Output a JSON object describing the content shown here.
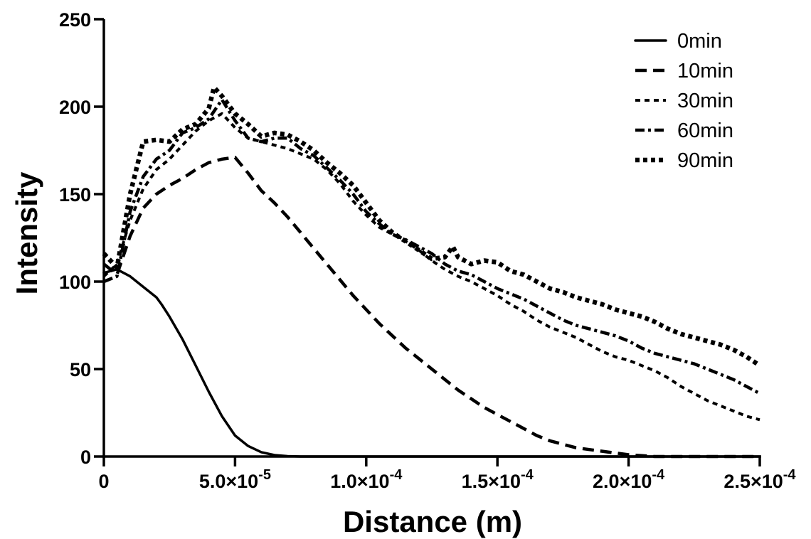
{
  "chart_data": {
    "type": "line",
    "title": "",
    "xlabel": "Distance (m)",
    "ylabel": "Intensity",
    "xlim": [
      0,
      0.00025
    ],
    "ylim": [
      0,
      250
    ],
    "grid": false,
    "legend_position": "top-right",
    "x_ticks": [
      {
        "value": 0,
        "mantissa": "0",
        "exponent": ""
      },
      {
        "value": 5e-05,
        "mantissa": "5.0×10",
        "exponent": "-5"
      },
      {
        "value": 0.0001,
        "mantissa": "1.0×10",
        "exponent": "-4"
      },
      {
        "value": 0.00015,
        "mantissa": "1.5×10",
        "exponent": "-4"
      },
      {
        "value": 0.0002,
        "mantissa": "2.0×10",
        "exponent": "-4"
      },
      {
        "value": 0.00025,
        "mantissa": "2.5×10",
        "exponent": "-4"
      }
    ],
    "y_ticks": [
      {
        "value": 0,
        "label": "0"
      },
      {
        "value": 50,
        "label": "50"
      },
      {
        "value": 100,
        "label": "100"
      },
      {
        "value": 150,
        "label": "150"
      },
      {
        "value": 200,
        "label": "200"
      },
      {
        "value": 250,
        "label": "250"
      }
    ],
    "series": [
      {
        "name": "0min",
        "dash": "solid",
        "x": [
          0,
          5e-06,
          1e-05,
          1.5e-05,
          2e-05,
          2.2e-05,
          2.5e-05,
          3e-05,
          3.5e-05,
          4e-05,
          4.5e-05,
          5e-05,
          5.5e-05,
          6e-05,
          6.5e-05,
          7e-05,
          7.5e-05,
          8e-05,
          0.0001,
          0.00025
        ],
        "y": [
          105,
          107,
          103,
          97,
          91,
          87,
          80,
          67,
          52,
          37,
          23,
          12,
          6,
          2.5,
          0.8,
          0.2,
          0,
          0,
          0,
          0
        ]
      },
      {
        "name": "10min",
        "dash": "long-dash",
        "x": [
          0,
          5e-06,
          1e-05,
          1.5e-05,
          2e-05,
          2.5e-05,
          3e-05,
          3.5e-05,
          4e-05,
          4.5e-05,
          5e-05,
          5.5e-05,
          6e-05,
          6.5e-05,
          7e-05,
          7.5e-05,
          8e-05,
          8.5e-05,
          9e-05,
          9.5e-05,
          0.0001,
          0.000105,
          0.00011,
          0.000115,
          0.00012,
          0.000125,
          0.00013,
          0.000135,
          0.00014,
          0.000145,
          0.00015,
          0.000155,
          0.00016,
          0.000165,
          0.00017,
          0.000175,
          0.00018,
          0.000185,
          0.00019,
          0.000195,
          0.0002,
          0.000205,
          0.00021,
          0.00022,
          0.00023,
          0.00024,
          0.00025
        ],
        "y": [
          110,
          104,
          126,
          142,
          150,
          155,
          159,
          164,
          168,
          170,
          171,
          162,
          152,
          145,
          137,
          128,
          119,
          110,
          101,
          92,
          84,
          76,
          69,
          62,
          56,
          50,
          44,
          38,
          33,
          28,
          24,
          20,
          16,
          12,
          9,
          7,
          5,
          4,
          3,
          2,
          1,
          0.5,
          0,
          0,
          0,
          0,
          0
        ]
      },
      {
        "name": "30min",
        "dash": "short-dash",
        "x": [
          0,
          5e-06,
          1e-05,
          1.5e-05,
          2e-05,
          2.5e-05,
          3e-05,
          3.5e-05,
          4e-05,
          4.5e-05,
          5e-05,
          5.5e-05,
          6e-05,
          6.5e-05,
          7e-05,
          7.5e-05,
          8e-05,
          8.5e-05,
          9e-05,
          9.5e-05,
          0.0001,
          0.000105,
          0.00011,
          0.000115,
          0.00012,
          0.000125,
          0.00013,
          0.000135,
          0.00014,
          0.000145,
          0.00015,
          0.000155,
          0.00016,
          0.000165,
          0.00017,
          0.000175,
          0.00018,
          0.000185,
          0.00019,
          0.000195,
          0.0002,
          0.000205,
          0.00021,
          0.000215,
          0.00022,
          0.000225,
          0.00023,
          0.000235,
          0.00024,
          0.000245,
          0.00025
        ],
        "y": [
          103,
          110,
          135,
          153,
          164,
          170,
          178,
          186,
          192,
          196,
          188,
          182,
          180,
          178,
          176,
          173,
          170,
          164,
          156,
          146,
          138,
          131,
          127,
          123,
          118,
          112,
          107,
          103,
          100,
          96,
          92,
          87,
          83,
          78,
          74,
          71,
          68,
          64,
          60,
          57,
          55,
          52,
          49,
          45,
          40,
          36,
          32,
          29,
          26,
          23,
          21
        ]
      },
      {
        "name": "60min",
        "dash": "dash-dot",
        "x": [
          0,
          5e-06,
          1e-05,
          1.5e-05,
          2e-05,
          2.5e-05,
          3e-05,
          3.5e-05,
          4e-05,
          4.5e-05,
          5e-05,
          5.5e-05,
          6e-05,
          6.5e-05,
          7e-05,
          7.5e-05,
          8e-05,
          8.5e-05,
          9e-05,
          9.5e-05,
          0.0001,
          0.000105,
          0.00011,
          0.000115,
          0.00012,
          0.000125,
          0.00013,
          0.000135,
          0.00014,
          0.000145,
          0.00015,
          0.000155,
          0.00016,
          0.000165,
          0.00017,
          0.000175,
          0.00018,
          0.000185,
          0.00019,
          0.000195,
          0.0002,
          0.000205,
          0.00021,
          0.000215,
          0.00022,
          0.000225,
          0.00023,
          0.000235,
          0.00024,
          0.000245,
          0.00025
        ],
        "y": [
          100,
          103,
          140,
          160,
          170,
          175,
          185,
          188,
          193,
          204,
          192,
          182,
          180,
          182,
          182,
          176,
          172,
          165,
          158,
          150,
          140,
          133,
          127,
          124,
          120,
          116,
          110,
          106,
          104,
          100,
          96,
          93,
          90,
          86,
          82,
          78,
          75,
          73,
          71,
          69,
          66,
          62,
          59,
          57,
          55,
          53,
          50,
          47,
          44,
          40,
          36
        ]
      },
      {
        "name": "90min",
        "dash": "dotted",
        "x": [
          0,
          5e-06,
          1e-05,
          1.5e-05,
          2e-05,
          2.5e-05,
          3e-05,
          3.5e-05,
          4e-05,
          4.2e-05,
          4.5e-05,
          5e-05,
          5.5e-05,
          6e-05,
          6.5e-05,
          7e-05,
          7.5e-05,
          8e-05,
          8.5e-05,
          9e-05,
          9.5e-05,
          0.0001,
          0.000105,
          0.00011,
          0.000115,
          0.00012,
          0.000125,
          0.00013,
          0.000133,
          0.000135,
          0.00014,
          0.000145,
          0.00015,
          0.000155,
          0.00016,
          0.000165,
          0.00017,
          0.000175,
          0.00018,
          0.000185,
          0.00019,
          0.000195,
          0.0002,
          0.000205,
          0.00021,
          0.000215,
          0.00022,
          0.000225,
          0.00023,
          0.000235,
          0.00024,
          0.000245,
          0.00025
        ],
        "y": [
          116,
          108,
          150,
          180,
          181,
          180,
          187,
          190,
          199,
          211,
          206,
          196,
          190,
          183,
          185,
          184,
          180,
          175,
          168,
          162,
          155,
          145,
          135,
          128,
          123,
          118,
          113,
          114,
          120,
          114,
          110,
          112,
          111,
          106,
          104,
          100,
          96,
          94,
          91,
          89,
          87,
          84,
          82,
          80,
          77,
          73,
          70,
          68,
          66,
          64,
          61,
          57,
          52
        ]
      }
    ]
  }
}
